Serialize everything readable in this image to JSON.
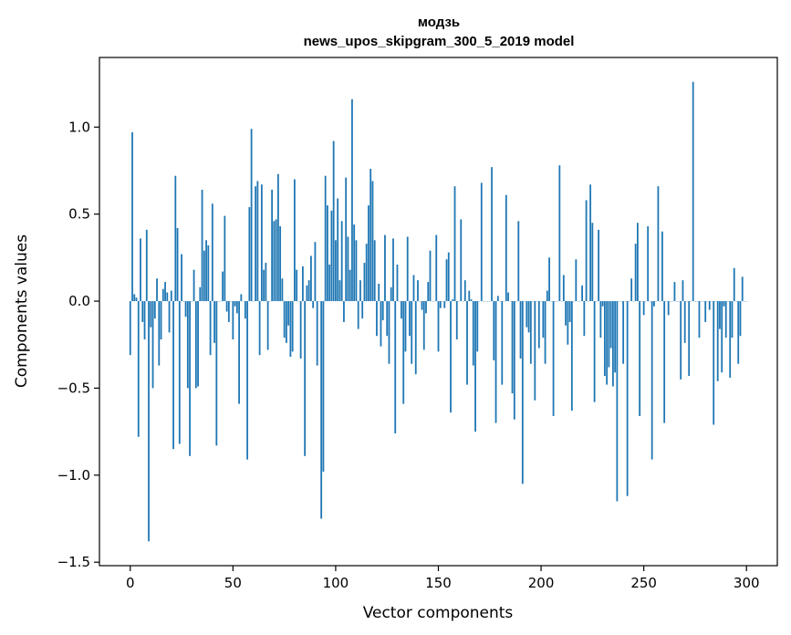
{
  "chart_data": {
    "type": "bar",
    "title_line1": "модзь",
    "title_line2": "news_upos_skipgram_300_5_2019 model",
    "xlabel": "Vector components",
    "ylabel": "Components values",
    "xlim": [
      -15,
      315
    ],
    "ylim": [
      -1.52,
      1.4
    ],
    "x_ticks": [
      0,
      50,
      100,
      150,
      200,
      250,
      300
    ],
    "x_tick_labels": [
      "0",
      "50",
      "100",
      "150",
      "200",
      "250",
      "300"
    ],
    "y_ticks": [
      -1.5,
      -1.0,
      -0.5,
      0.0,
      0.5,
      1.0
    ],
    "y_tick_labels": [
      "−1.5",
      "−1.0",
      "−0.5",
      "0.0",
      "0.5",
      "1.0"
    ],
    "bar_color": "#1f77b4",
    "grid": false,
    "x_start": 0,
    "values": [
      -0.31,
      0.97,
      0.04,
      0.02,
      -0.78,
      0.36,
      -0.12,
      -0.22,
      0.41,
      -1.38,
      -0.15,
      -0.5,
      -0.1,
      0.13,
      -0.37,
      -0.22,
      0.07,
      0.11,
      0.05,
      -0.18,
      0.06,
      -0.85,
      0.72,
      0.42,
      -0.82,
      0.27,
      0.0,
      -0.09,
      -0.5,
      -0.89,
      0.0,
      0.18,
      -0.5,
      -0.49,
      0.08,
      0.64,
      0.29,
      0.35,
      0.32,
      -0.31,
      0.56,
      -0.24,
      -0.83,
      0.0,
      0.0,
      0.17,
      0.49,
      -0.06,
      -0.12,
      0.0,
      -0.22,
      -0.03,
      -0.07,
      -0.59,
      0.04,
      0.0,
      -0.1,
      -0.91,
      0.54,
      0.99,
      0.0,
      0.66,
      0.69,
      -0.31,
      0.67,
      0.18,
      0.22,
      -0.28,
      0.0,
      0.64,
      0.46,
      0.47,
      0.73,
      0.43,
      0.13,
      -0.21,
      -0.24,
      -0.14,
      -0.32,
      -0.29,
      0.7,
      0.18,
      0.0,
      -0.33,
      0.2,
      -0.89,
      0.09,
      0.12,
      0.26,
      -0.04,
      0.34,
      -0.37,
      0.0,
      -1.25,
      -0.98,
      0.72,
      0.55,
      0.21,
      0.52,
      0.92,
      0.35,
      0.59,
      0.12,
      0.46,
      -0.12,
      0.71,
      0.37,
      0.18,
      1.16,
      0.44,
      0.35,
      -0.16,
      0.12,
      -0.1,
      0.22,
      0.33,
      0.55,
      0.76,
      0.69,
      0.35,
      -0.2,
      0.1,
      -0.26,
      -0.11,
      0.38,
      -0.2,
      -0.36,
      0.08,
      0.36,
      -0.76,
      0.21,
      0.0,
      -0.1,
      -0.59,
      -0.29,
      0.37,
      -0.2,
      -0.36,
      0.15,
      -0.42,
      0.12,
      0.0,
      -0.05,
      -0.28,
      -0.07,
      0.11,
      0.29,
      0.0,
      0.0,
      0.38,
      -0.29,
      -0.04,
      0.0,
      -0.04,
      0.24,
      0.28,
      -0.64,
      0.01,
      0.66,
      -0.22,
      0.0,
      0.47,
      0.0,
      0.12,
      -0.48,
      0.06,
      0.01,
      -0.37,
      -0.75,
      -0.29,
      0.0,
      0.68,
      0.0,
      0.0,
      0.0,
      0.0,
      0.77,
      -0.34,
      -0.7,
      0.03,
      0.0,
      -0.48,
      0.0,
      0.61,
      0.05,
      0.0,
      -0.53,
      -0.68,
      0.0,
      0.46,
      -0.33,
      -1.05,
      0.0,
      -0.15,
      -0.18,
      -0.36,
      0.0,
      -0.57,
      0.0,
      -0.27,
      0.0,
      -0.21,
      -0.36,
      0.06,
      0.25,
      0.0,
      -0.66,
      0.0,
      0.0,
      0.78,
      0.0,
      0.15,
      -0.14,
      -0.25,
      -0.12,
      -0.63,
      0.0,
      0.24,
      0.0,
      0.0,
      0.09,
      -0.2,
      0.58,
      0.0,
      0.67,
      0.45,
      -0.58,
      0.0,
      0.41,
      -0.21,
      -0.03,
      -0.43,
      -0.48,
      -0.38,
      -0.27,
      -0.49,
      -0.41,
      -1.15,
      0.0,
      0.0,
      -0.36,
      0.0,
      -1.12,
      0.0,
      0.13,
      0.0,
      0.33,
      0.45,
      -0.66,
      0.0,
      -0.08,
      0.0,
      0.43,
      0.0,
      -0.91,
      -0.03,
      0.0,
      0.66,
      0.0,
      0.4,
      -0.7,
      0.0,
      -0.08,
      0.0,
      0.0,
      0.11,
      0.0,
      0.0,
      -0.45,
      0.12,
      -0.24,
      0.0,
      -0.43,
      0.0,
      1.26,
      0.0,
      0.0,
      -0.21,
      0.0,
      0.0,
      -0.12,
      0.0,
      -0.05,
      0.0,
      -0.71,
      0.0,
      -0.46,
      -0.16,
      -0.41,
      -0.03,
      -0.21,
      0.0,
      -0.44,
      -0.21,
      0.19,
      0.0,
      -0.36,
      -0.2,
      0.14,
      0.0,
      0.0
    ]
  }
}
